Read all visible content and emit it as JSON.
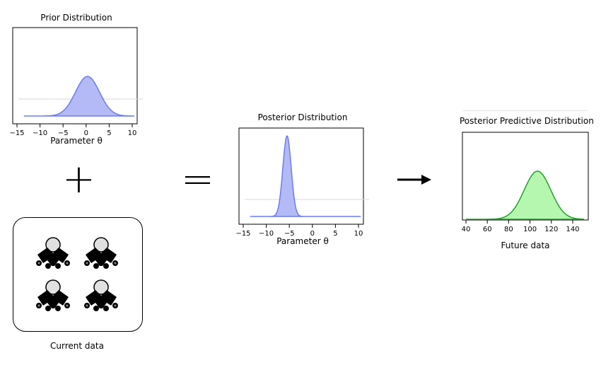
{
  "prior": {
    "title": "Prior Distribution",
    "xlabel": "Parameter θ",
    "ticks": [
      "−15",
      "−10",
      "−5",
      "0",
      "5",
      "10"
    ],
    "color": "#6b7bef",
    "fill": "#b4baf6"
  },
  "posterior": {
    "title": "Posterior Distribution",
    "xlabel": "Parameter θ",
    "ticks": [
      "−15",
      "−10",
      "−5",
      "0",
      "5",
      "10"
    ],
    "color": "#6b7bef",
    "fill": "#b4baf6"
  },
  "predictive": {
    "title": "Posterior Predictive Distribution",
    "xlabel": "Future data",
    "ticks": [
      "40",
      "60",
      "80",
      "100",
      "120",
      "140"
    ],
    "color": "#22a02a",
    "fill": "#b6f7b0"
  },
  "operators": {
    "plus": "+",
    "equals": "="
  },
  "data_box": {
    "label": "Current data",
    "icon": "person-glyph-icon"
  }
}
